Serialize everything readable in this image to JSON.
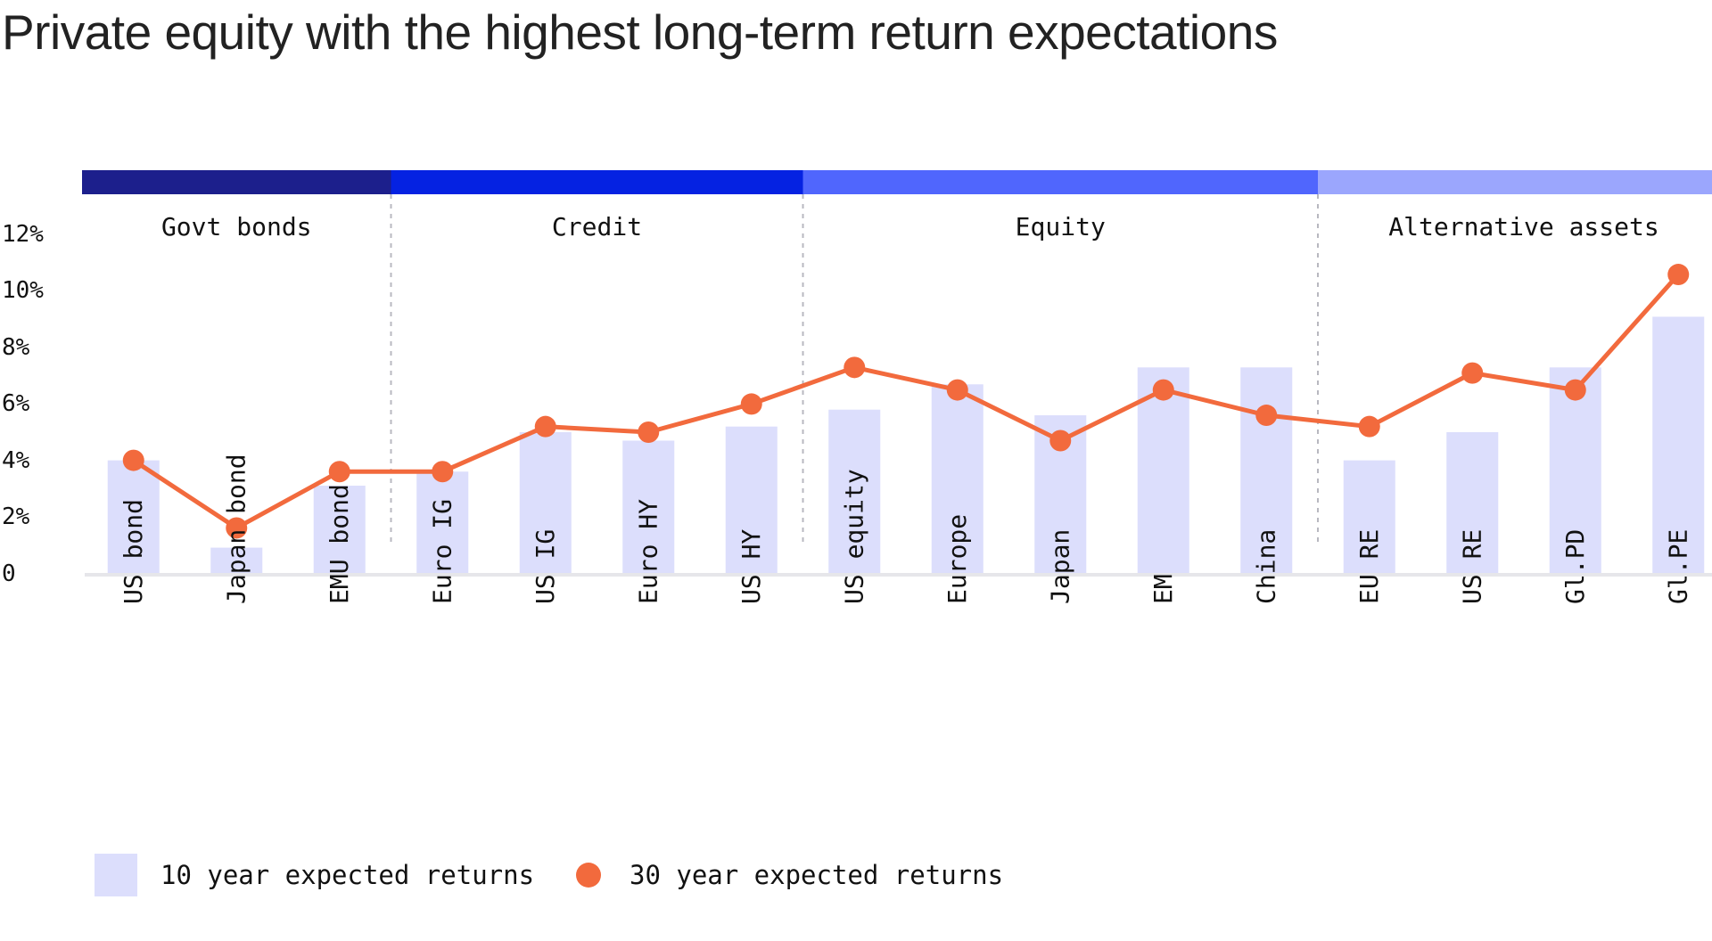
{
  "title": "Private equity with the highest long-term return expectations",
  "chart_data": {
    "type": "bar",
    "title": "Private equity with the highest long-term return expectations",
    "categories": [
      "US bond",
      "Japan bond",
      "EMU bond",
      "Euro IG",
      "US IG",
      "Euro HY",
      "US HY",
      "US equity",
      "Europe",
      "Japan",
      "EM",
      "China",
      "EU RE",
      "US RE",
      "Gl.PD",
      "Gl.PE"
    ],
    "series": [
      {
        "name": "10 year expected returns",
        "type": "bar",
        "color": "#dcdefc",
        "values": [
          4.0,
          0.9,
          3.1,
          3.6,
          5.0,
          4.7,
          5.2,
          5.8,
          6.7,
          5.6,
          7.3,
          7.3,
          4.0,
          5.0,
          7.3,
          9.1
        ]
      },
      {
        "name": "30 year expected returns",
        "type": "line",
        "color": "#f26a3d",
        "values": [
          4.0,
          1.6,
          3.6,
          3.6,
          5.2,
          5.0,
          6.0,
          7.3,
          6.5,
          4.7,
          6.5,
          5.6,
          5.2,
          7.1,
          6.5,
          10.6
        ]
      }
    ],
    "groups": [
      {
        "label": "Govt bonds",
        "start": 0,
        "end": 2,
        "color": "#1c1f8c"
      },
      {
        "label": "Credit",
        "start": 3,
        "end": 6,
        "color": "#0522e2"
      },
      {
        "label": "Equity",
        "start": 7,
        "end": 11,
        "color": "#5066fd"
      },
      {
        "label": "Alternative assets",
        "start": 12,
        "end": 15,
        "color": "#9ba6fd"
      }
    ],
    "y_ticks": [
      0,
      2,
      4,
      6,
      8,
      10,
      12
    ],
    "y_tick_labels": [
      "0",
      "2%",
      "4%",
      "6%",
      "8%",
      "10%",
      "12%"
    ],
    "ylim": [
      0,
      12
    ],
    "legend_position": "bottom-left",
    "grid": false
  }
}
